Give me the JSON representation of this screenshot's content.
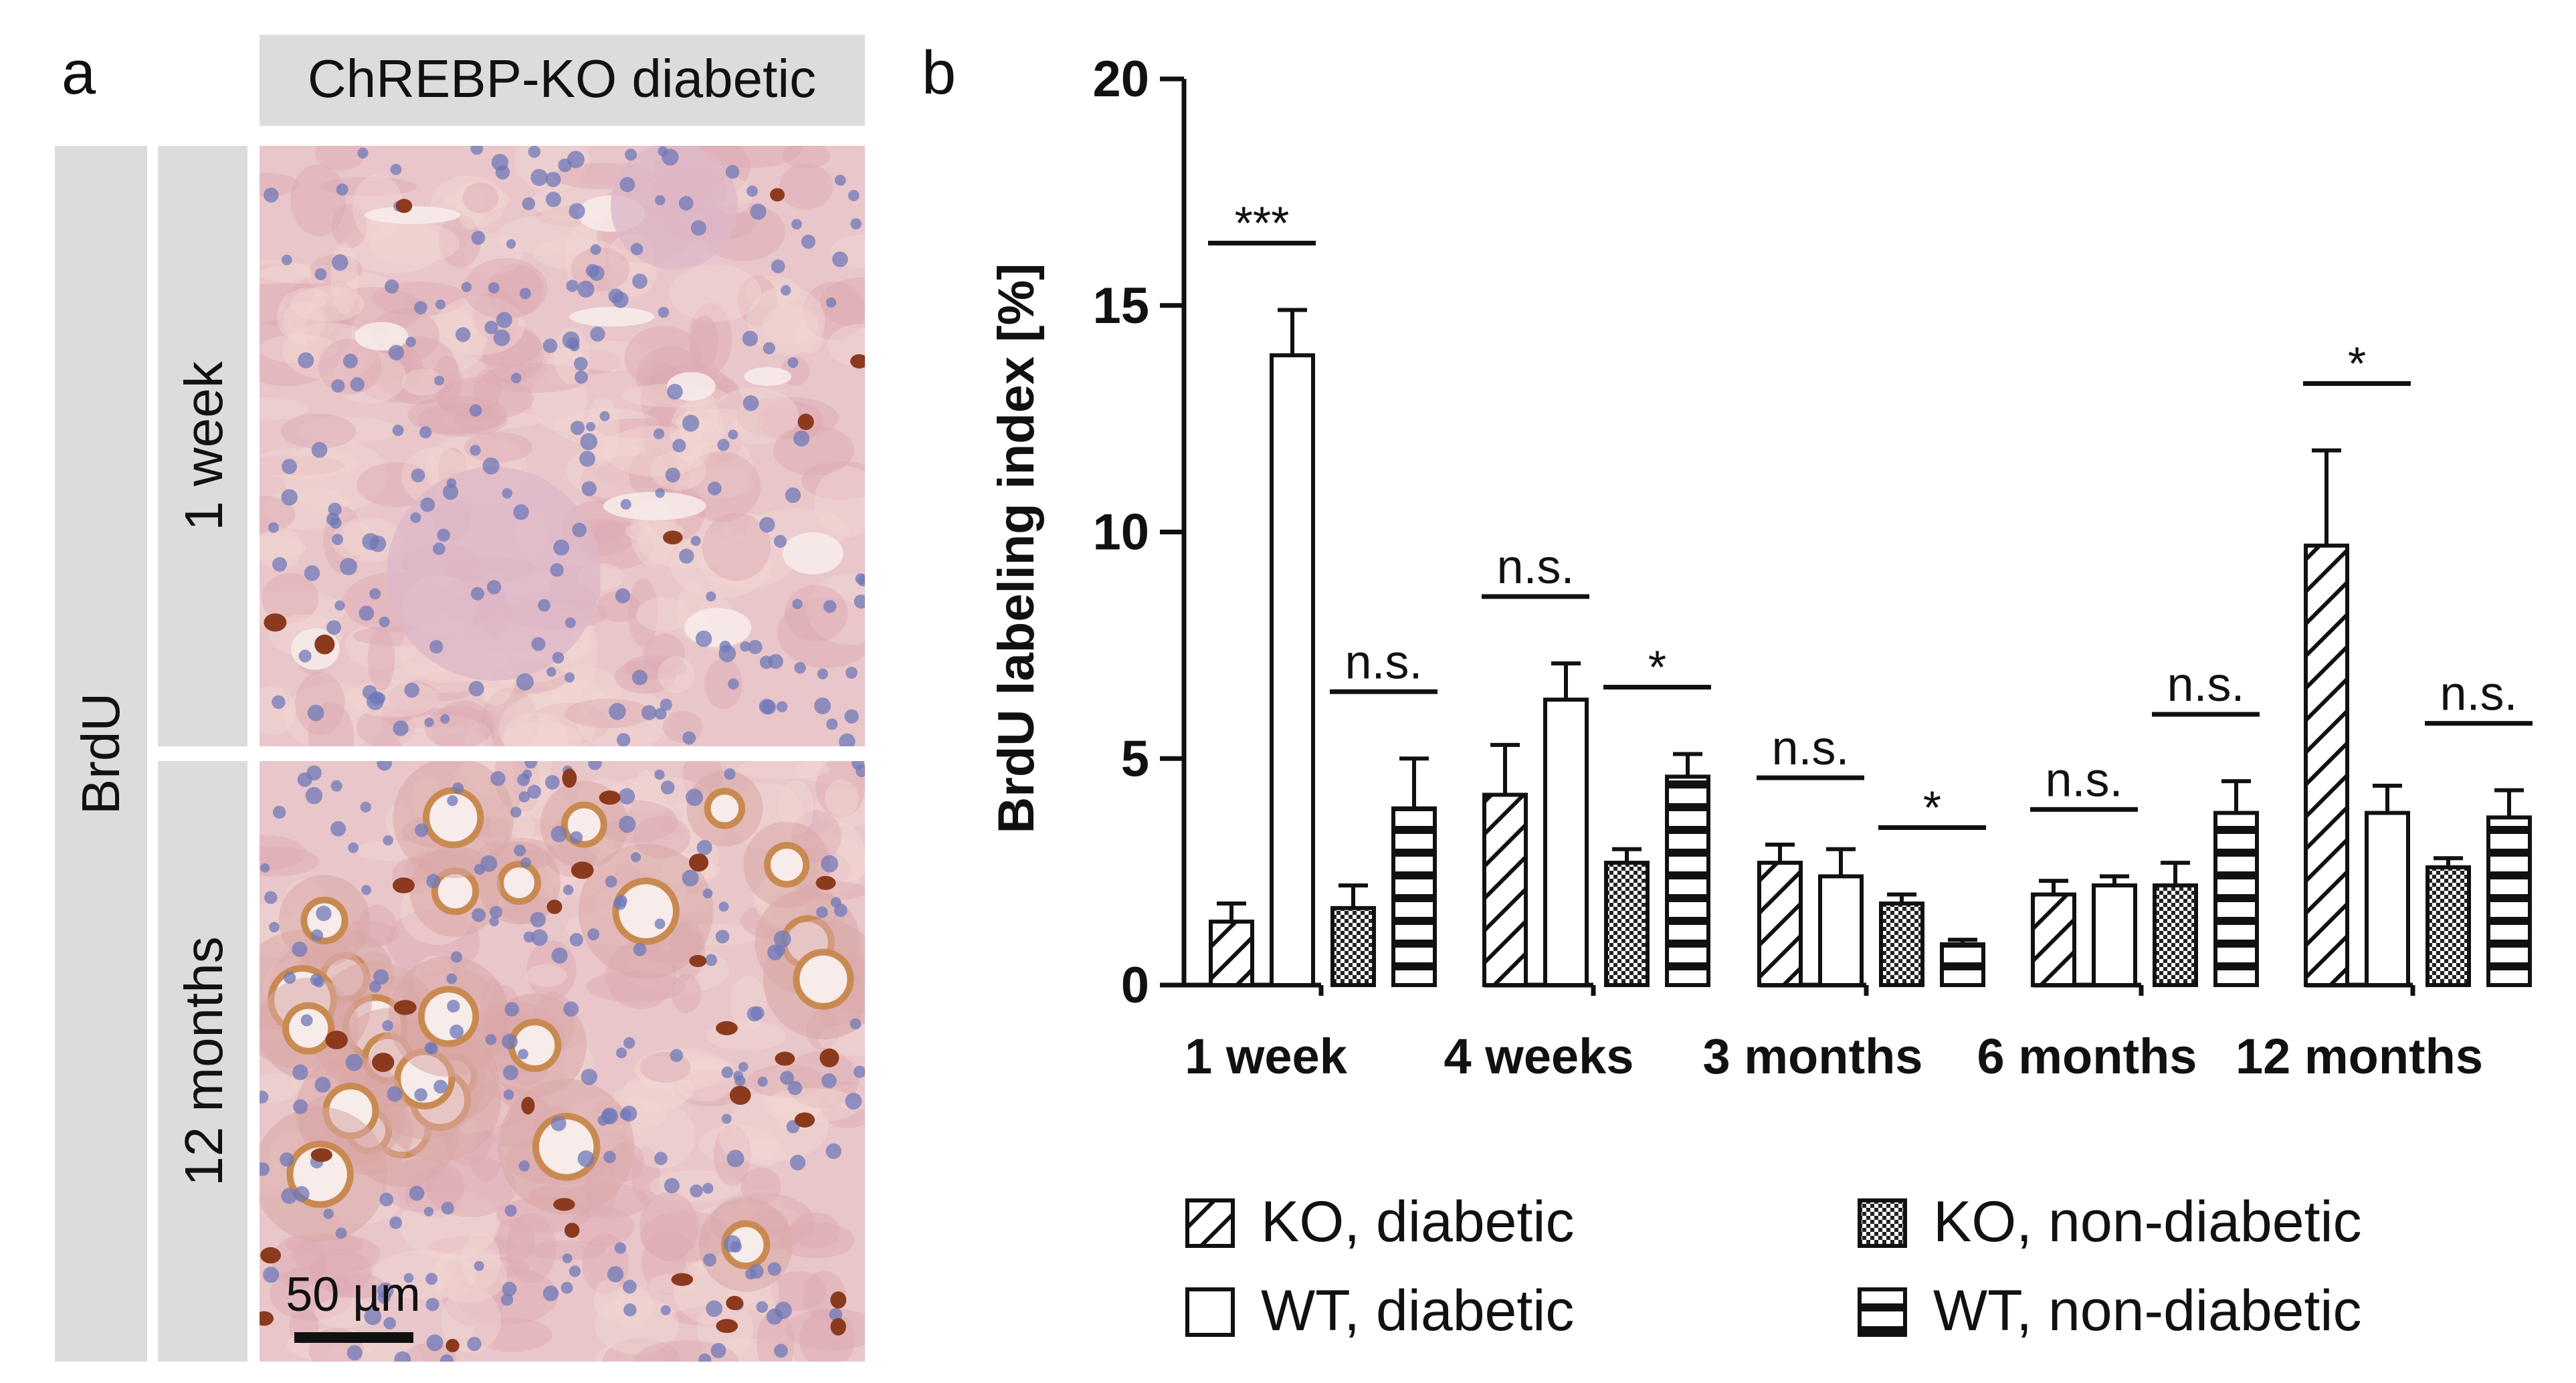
{
  "panel_a": {
    "letter": "a",
    "header": "ChREBP-KO diabetic",
    "stain_label": "BrdU",
    "rows": [
      {
        "label": "1 week"
      },
      {
        "label": "12 months"
      }
    ],
    "scale_bar_label": "50 µm",
    "colors": {
      "label_gray": "#dcdcdc",
      "tissue_pink": "#e9c6ca",
      "tissue_pink_dark": "#dba9b2",
      "nuclei_blue": "#6f78b8",
      "brdu_brown": "#8b3a1e",
      "lumen": "#f7ecea",
      "brush_border": "#c98a52"
    }
  },
  "panel_b": {
    "letter": "b"
  },
  "chart_data": {
    "type": "bar",
    "title": "",
    "xlabel": "",
    "ylabel": "BrdU labeling index [%]",
    "ylim": [
      0,
      20
    ],
    "yticks": [
      "0",
      "5",
      "10",
      "15",
      "20"
    ],
    "grid": false,
    "legend_position": "bottom",
    "categories": [
      "1 week",
      "4 weeks",
      "3 months",
      "6 months",
      "12 months"
    ],
    "series": [
      {
        "name": "KO, diabetic",
        "pattern": "diagonal",
        "values": [
          1.4,
          4.2,
          2.7,
          2.0,
          9.7
        ],
        "errors": [
          0.4,
          1.1,
          0.4,
          0.3,
          2.1
        ]
      },
      {
        "name": "WT, diabetic",
        "pattern": "open",
        "values": [
          13.9,
          6.3,
          2.4,
          2.2,
          3.8
        ],
        "errors": [
          1.0,
          0.8,
          0.6,
          0.2,
          0.6
        ]
      },
      {
        "name": "KO, non-diabetic",
        "pattern": "checker",
        "values": [
          1.7,
          2.7,
          1.8,
          2.2,
          2.6
        ],
        "errors": [
          0.5,
          0.3,
          0.2,
          0.5,
          0.2
        ]
      },
      {
        "name": "WT, non-diabetic",
        "pattern": "horizontal",
        "values": [
          3.9,
          4.6,
          0.9,
          3.8,
          3.7
        ],
        "errors": [
          1.1,
          0.5,
          0.1,
          0.7,
          0.6
        ]
      }
    ],
    "annotations": [
      {
        "category": "1 week",
        "pair": [
          0,
          1
        ],
        "text": "***"
      },
      {
        "category": "1 week",
        "pair": [
          2,
          3
        ],
        "text": "n.s."
      },
      {
        "category": "4 weeks",
        "pair": [
          0,
          1
        ],
        "text": "n.s."
      },
      {
        "category": "4 weeks",
        "pair": [
          2,
          3
        ],
        "text": "*"
      },
      {
        "category": "3 months",
        "pair": [
          0,
          1
        ],
        "text": "n.s."
      },
      {
        "category": "3 months",
        "pair": [
          2,
          3
        ],
        "text": "*"
      },
      {
        "category": "6 months",
        "pair": [
          0,
          1
        ],
        "text": "n.s."
      },
      {
        "category": "6 months",
        "pair": [
          2,
          3
        ],
        "text": "n.s."
      },
      {
        "category": "12 months",
        "pair": [
          0,
          1
        ],
        "text": "*"
      },
      {
        "category": "12 months",
        "pair": [
          2,
          3
        ],
        "text": "n.s."
      }
    ]
  }
}
